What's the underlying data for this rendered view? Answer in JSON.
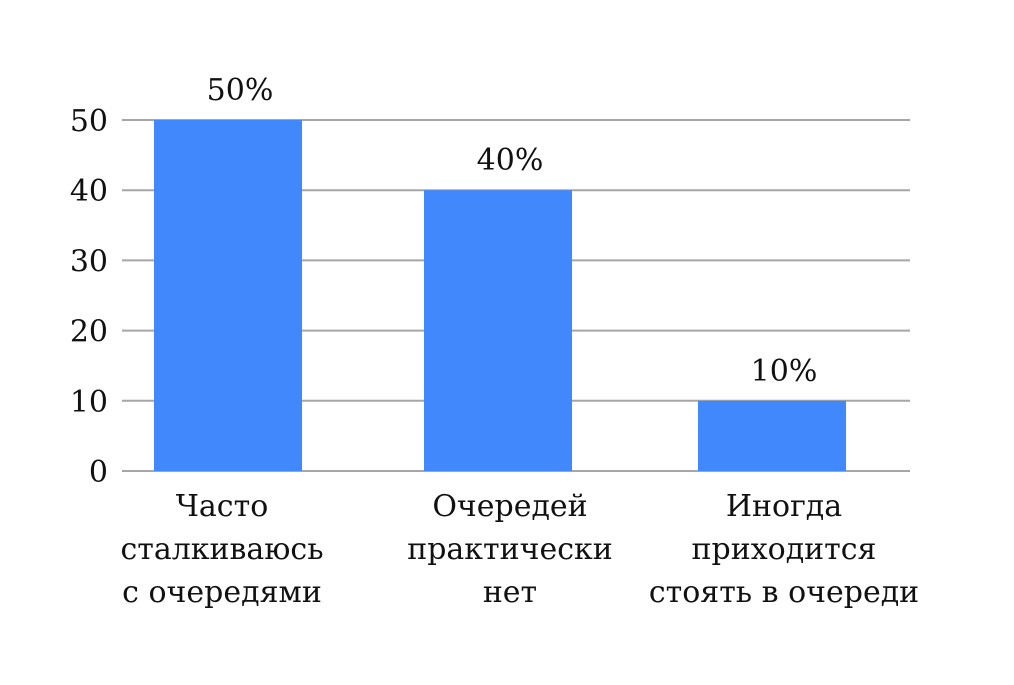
{
  "chart_data": {
    "type": "bar",
    "categories": [
      [
        "Часто",
        "сталкиваюсь",
        "с очередями"
      ],
      [
        "Очередей",
        "практически",
        "нет"
      ],
      [
        "Иногда",
        "приходится",
        "стоять в очереди"
      ]
    ],
    "values": [
      50,
      40,
      10
    ],
    "data_labels": [
      "50%",
      "40%",
      "10%"
    ],
    "ylim": [
      0,
      50
    ],
    "yticks": [
      0,
      10,
      20,
      30,
      40,
      50
    ],
    "grid": true,
    "bar_color": "#4088fb",
    "grid_color": "#a6a6a6"
  }
}
